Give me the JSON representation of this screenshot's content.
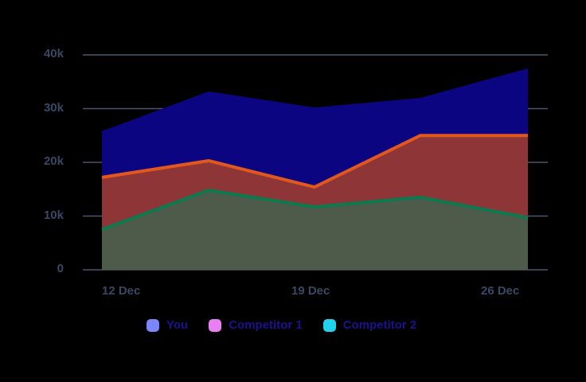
{
  "chart_data": {
    "type": "area",
    "title": "",
    "xlabel": "",
    "ylabel": "",
    "ylim": [
      0,
      40000
    ],
    "grid": true,
    "legend_position": "bottom",
    "y_ticks": [
      "0",
      "10k",
      "20k",
      "30k",
      "40k"
    ],
    "x_ticks": [
      "12 Dec",
      "19 Dec",
      "26 Dec"
    ],
    "x": [
      "12 Dec",
      "15 Dec",
      "19 Dec",
      "23 Dec",
      "26 Dec"
    ],
    "series": [
      {
        "name": "You",
        "values": [
          25800,
          33200,
          30200,
          32000,
          37500
        ],
        "fill": "#0c0582",
        "line": "#0c0582",
        "legend_color": "#7b86ff"
      },
      {
        "name": "Competitor 1",
        "values": [
          17200,
          20300,
          15400,
          25000,
          25000
        ],
        "fill": "#8e3538",
        "line": "#e2571c",
        "legend_color": "#e97ff0"
      },
      {
        "name": "Competitor 2",
        "values": [
          7500,
          14800,
          11700,
          13500,
          9700
        ],
        "fill": "#4e5a4a",
        "line": "#0b7a4e",
        "legend_color": "#22d1ee"
      }
    ]
  },
  "legend": [
    {
      "label": "You",
      "color": "#7b86ff"
    },
    {
      "label": "Competitor 1",
      "color": "#e97ff0"
    },
    {
      "label": "Competitor 2",
      "color": "#22d1ee"
    }
  ]
}
